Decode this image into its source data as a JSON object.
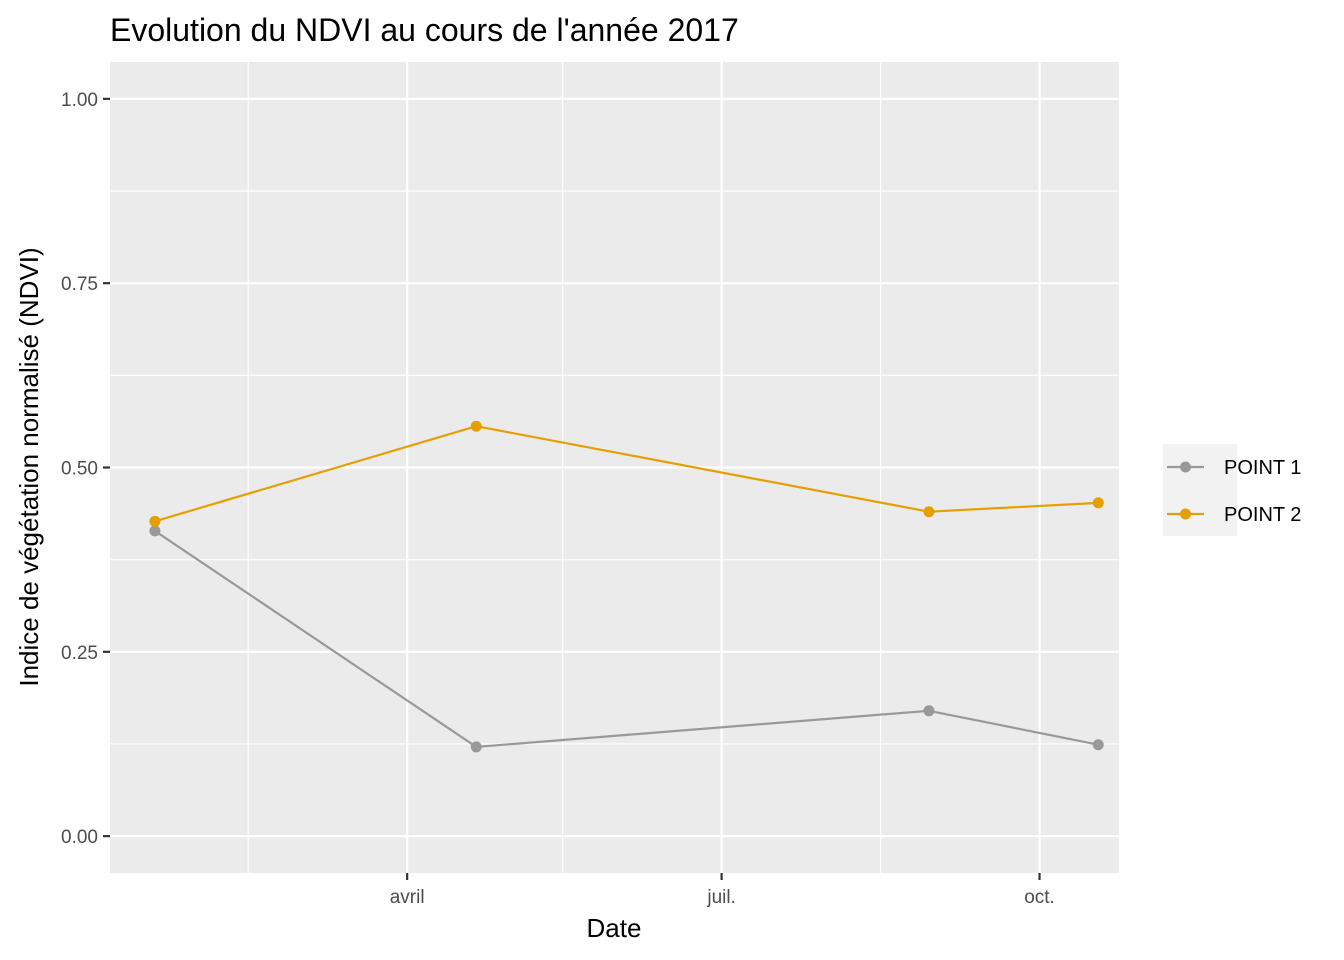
{
  "chart_data": {
    "type": "line",
    "title": "Evolution du NDVI au cours de l'année 2017",
    "xlabel": "Date",
    "ylabel": "Indice de végétation normalisé (NDVI)",
    "x_range": [
      "2017-01-05",
      "2017-10-24"
    ],
    "ylim": [
      -0.05,
      1.05
    ],
    "y_ticks": [
      {
        "value": 0,
        "label": "0.00"
      },
      {
        "value": 0.25,
        "label": "0.25"
      },
      {
        "value": 0.5,
        "label": "0.50"
      },
      {
        "value": 0.75,
        "label": "0.75"
      },
      {
        "value": 1,
        "label": "1.00"
      }
    ],
    "x_ticks": [
      {
        "value": "2017-04-01",
        "label": "avril"
      },
      {
        "value": "2017-07-01",
        "label": "juil."
      },
      {
        "value": "2017-10-01",
        "label": "oct."
      }
    ],
    "x_minor_ticks": [
      "2017-02-14",
      "2017-05-16",
      "2017-08-16"
    ],
    "y_minor_ticks": [
      0.125,
      0.375,
      0.625,
      0.875
    ],
    "grid": true,
    "panel_background": "#ebebeb",
    "grid_color": "#ffffff",
    "legend_position": "right",
    "series": [
      {
        "name": "POINT 1",
        "color": "#999999",
        "x": [
          "2017-01-18",
          "2017-04-21",
          "2017-08-30",
          "2017-10-18"
        ],
        "values": [
          0.414,
          0.121,
          0.17,
          0.124
        ]
      },
      {
        "name": "POINT 2",
        "color": "#e69f00",
        "x": [
          "2017-01-18",
          "2017-04-21",
          "2017-08-30",
          "2017-10-18"
        ],
        "values": [
          0.427,
          0.556,
          0.44,
          0.452
        ]
      }
    ]
  }
}
